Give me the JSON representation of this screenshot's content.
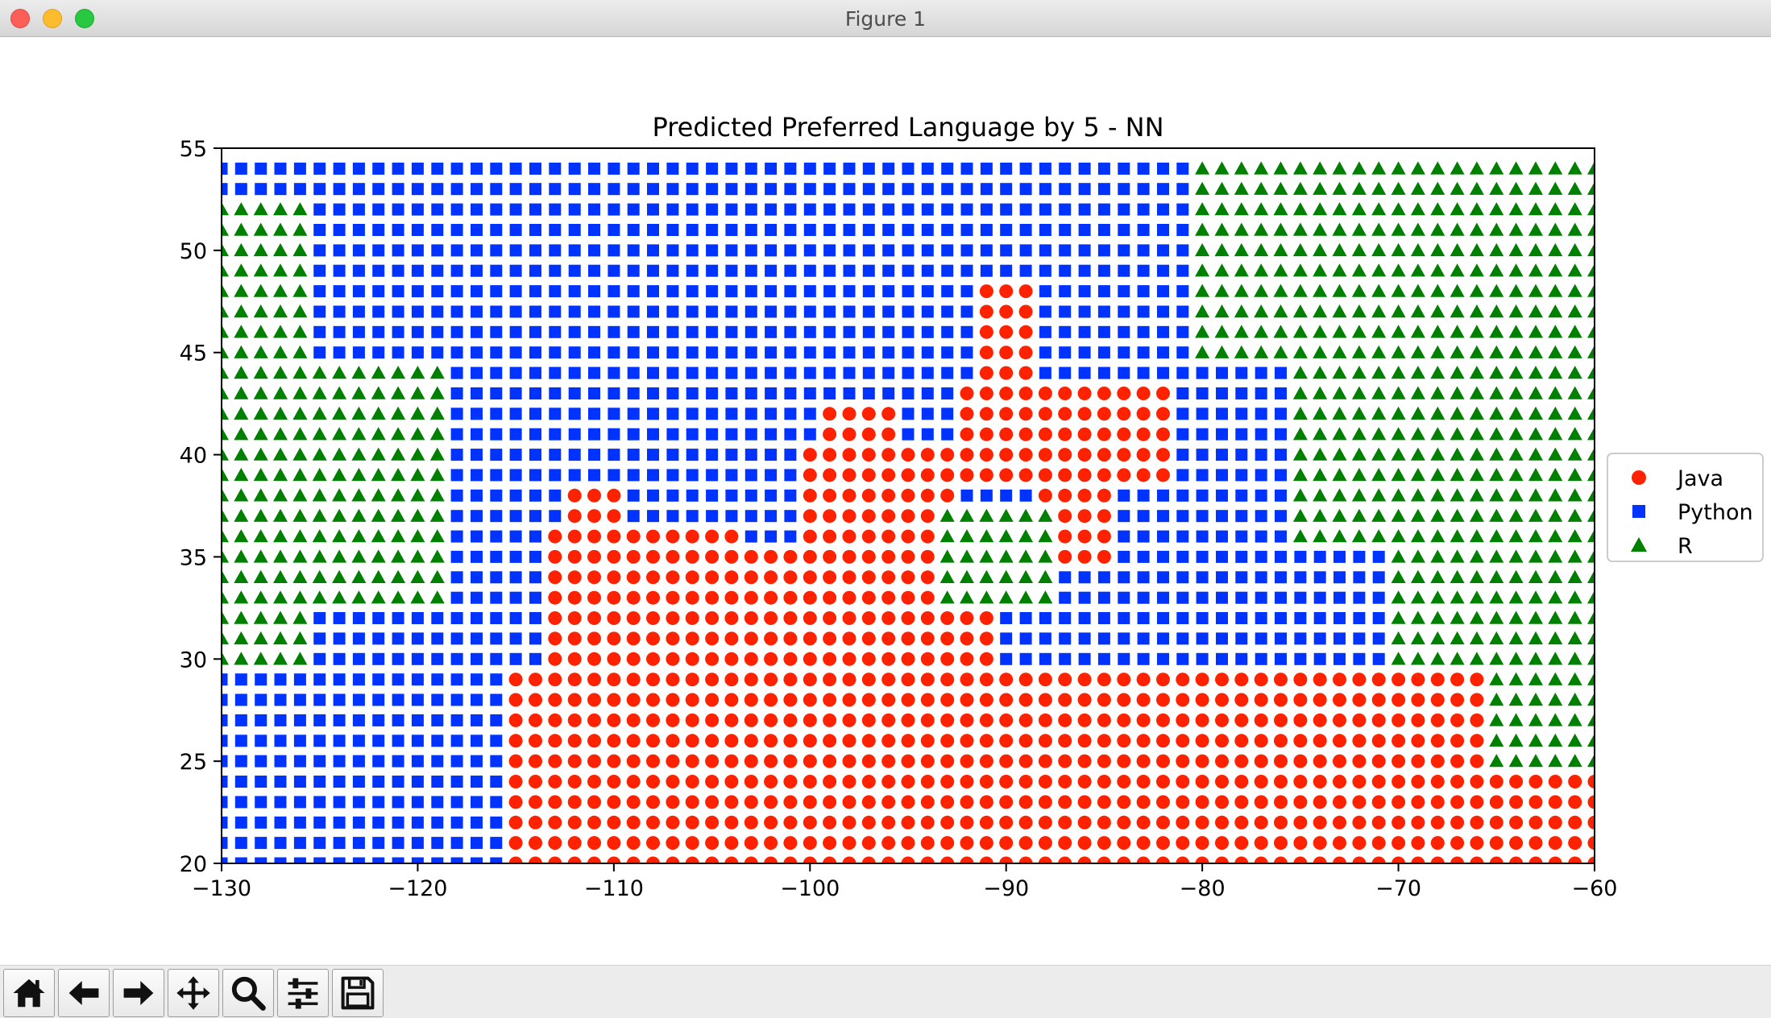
{
  "window": {
    "title": "Figure 1"
  },
  "toolbar": {
    "buttons": [
      {
        "name": "home-button",
        "icon": "home-icon"
      },
      {
        "name": "back-button",
        "icon": "arrow-left-icon"
      },
      {
        "name": "forward-button",
        "icon": "arrow-right-icon"
      },
      {
        "name": "pan-button",
        "icon": "move-icon"
      },
      {
        "name": "zoom-button",
        "icon": "magnifier-icon"
      },
      {
        "name": "configure-subplots-button",
        "icon": "sliders-icon"
      },
      {
        "name": "save-button",
        "icon": "floppy-disk-icon"
      }
    ]
  },
  "colors": {
    "Java": "#ff2200",
    "Python": "#0033ff",
    "R": "#008000",
    "grid_background": "#ffffff"
  },
  "chart_data": {
    "type": "scatter",
    "title": "Predicted Preferred Language by 5 - NN",
    "xlabel": "",
    "ylabel": "",
    "xlim": [
      -130,
      -60
    ],
    "ylim": [
      20,
      55
    ],
    "xticks": [
      -130,
      -120,
      -110,
      -100,
      -90,
      -80,
      -70,
      -60
    ],
    "yticks": [
      20,
      25,
      30,
      35,
      40,
      45,
      50,
      55
    ],
    "xtick_labels": [
      "−130",
      "−120",
      "−110",
      "−100",
      "−90",
      "−80",
      "−70",
      "−60"
    ],
    "ytick_labels": [
      "20",
      "25",
      "30",
      "35",
      "40",
      "45",
      "50",
      "55"
    ],
    "grid": false,
    "legend_position": "center-right-outside",
    "legend": [
      {
        "name": "Java",
        "marker": "circle"
      },
      {
        "name": "Python",
        "marker": "square"
      },
      {
        "name": "R",
        "marker": "triangle"
      }
    ],
    "grid_x": {
      "start": -130,
      "end": -60,
      "step": 1
    },
    "grid_y": {
      "start": 20,
      "end": 54,
      "step": 1
    },
    "series": [
      {
        "name": "Java",
        "marker": "circle",
        "regions": [
          [
            -115,
            20,
            -59,
            29
          ],
          [
            -113,
            30,
            -104,
            36
          ],
          [
            -112,
            37,
            -110,
            38
          ],
          [
            -103,
            30,
            -91,
            35
          ],
          [
            -100,
            36,
            -93,
            40
          ],
          [
            -99,
            41,
            -96,
            42
          ],
          [
            -92,
            39,
            -82,
            43
          ],
          [
            -91,
            44,
            -89,
            48
          ],
          [
            -88,
            35,
            -85,
            38
          ],
          [
            -89,
            31,
            -69,
            30
          ],
          [
            -67,
            26,
            -64,
            27
          ]
        ]
      },
      {
        "name": "Python",
        "marker": "square",
        "regions": [
          [
            -130,
            20,
            -116,
            29
          ],
          [
            -129,
            30,
            -117,
            36
          ],
          [
            -127,
            37,
            -118,
            44
          ],
          [
            -125,
            45,
            -81,
            54
          ],
          [
            -117,
            37,
            -101,
            44
          ],
          [
            -109,
            30,
            -104,
            36
          ],
          [
            -90,
            37,
            -80,
            38
          ],
          [
            -86,
            30,
            -71,
            36
          ],
          [
            -79,
            39,
            -75,
            43
          ],
          [
            -71,
            28,
            -66,
            30
          ]
        ]
      },
      {
        "name": "R",
        "marker": "triangle",
        "regions": [
          [
            -130,
            30,
            -126,
            52
          ],
          [
            -125,
            33,
            -119,
            44
          ],
          [
            -80,
            45,
            -60,
            54
          ],
          [
            -75,
            36,
            -60,
            44
          ],
          [
            -70,
            30,
            -60,
            35
          ],
          [
            -65,
            25,
            -60,
            29
          ],
          [
            -93,
            33,
            -88,
            37
          ]
        ]
      }
    ]
  }
}
